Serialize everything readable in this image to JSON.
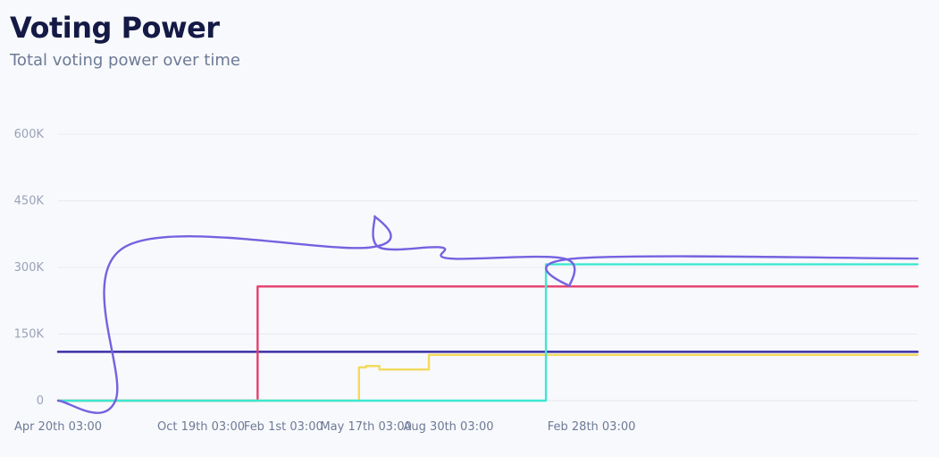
{
  "header": {
    "title": "Voting Power",
    "subtitle": "Total voting power over time"
  },
  "chart_data": {
    "type": "line",
    "title": "Voting Power",
    "subtitle": "Total voting power over time",
    "xlabel": "",
    "ylabel": "",
    "grid": true,
    "x_type": "time",
    "xlim": [
      "2021-04-20T03:00",
      "2024-04-18T03:00"
    ],
    "ylim": [
      0,
      600000
    ],
    "y_ticks": [
      {
        "value": 0,
        "label": "0"
      },
      {
        "value": 150000,
        "label": "150K"
      },
      {
        "value": 300000,
        "label": "300K"
      },
      {
        "value": 450000,
        "label": "450K"
      },
      {
        "value": 600000,
        "label": "600K"
      }
    ],
    "x_ticks": [
      {
        "date": "2021-04-20T03:00",
        "label": "Apr 20th 03:00"
      },
      {
        "date": "2021-10-19T03:00",
        "label": "Oct 19th 03:00"
      },
      {
        "date": "2022-02-01T03:00",
        "label": "Feb 1st 03:00"
      },
      {
        "date": "2022-05-17T03:00",
        "label": "May 17th 03:00"
      },
      {
        "date": "2022-08-30T03:00",
        "label": "Aug 30th 03:00"
      },
      {
        "date": "2023-02-28T03:00",
        "label": "Feb 28th 03:00"
      }
    ],
    "series": [
      {
        "color": "#3b2fa8",
        "interp": "step",
        "points": [
          [
            "2021-04-20T03:00",
            110000
          ],
          [
            "2024-04-18T03:00",
            110000
          ]
        ]
      },
      {
        "color": "#e63e6d",
        "interp": "step",
        "points": [
          [
            "2021-04-20T03:00",
            0
          ],
          [
            "2021-12-30T03:00",
            0
          ],
          [
            "2021-12-30T03:00",
            257000
          ],
          [
            "2024-04-18T03:00",
            257000
          ]
        ]
      },
      {
        "color": "#f2da5e",
        "interp": "step",
        "points": [
          [
            "2021-04-20T03:00",
            0
          ],
          [
            "2022-05-08T03:00",
            0
          ],
          [
            "2022-05-08T03:00",
            75000
          ],
          [
            "2022-05-17T03:00",
            75000
          ],
          [
            "2022-05-17T03:00",
            78000
          ],
          [
            "2022-06-03T03:00",
            78000
          ],
          [
            "2022-06-03T03:00",
            70000
          ],
          [
            "2022-08-05T03:00",
            70000
          ],
          [
            "2022-08-05T03:00",
            103000
          ],
          [
            "2024-04-18T03:00",
            103000
          ]
        ]
      },
      {
        "color": "#3de8d1",
        "interp": "step",
        "points": [
          [
            "2021-04-20T03:00",
            0
          ],
          [
            "2023-01-01T03:00",
            0
          ],
          [
            "2023-01-01T03:00",
            307000
          ],
          [
            "2024-04-18T03:00",
            307000
          ]
        ]
      },
      {
        "color": "#7462e0",
        "interp": "smooth",
        "points": [
          [
            "2021-04-20T03:00",
            0
          ],
          [
            "2021-07-02T03:00",
            0
          ],
          [
            "2021-07-13T03:00",
            345000
          ],
          [
            "2022-05-22T03:00",
            345000
          ],
          [
            "2022-05-28T03:00",
            415000
          ],
          [
            "2022-06-03T03:00",
            345000
          ],
          [
            "2022-08-21T03:00",
            345000
          ],
          [
            "2022-09-01T03:00",
            320000
          ],
          [
            "2023-01-24T03:00",
            320000
          ],
          [
            "2023-01-31T03:00",
            258000
          ],
          [
            "2023-02-07T03:00",
            320000
          ],
          [
            "2024-04-18T03:00",
            320000
          ]
        ]
      }
    ]
  }
}
